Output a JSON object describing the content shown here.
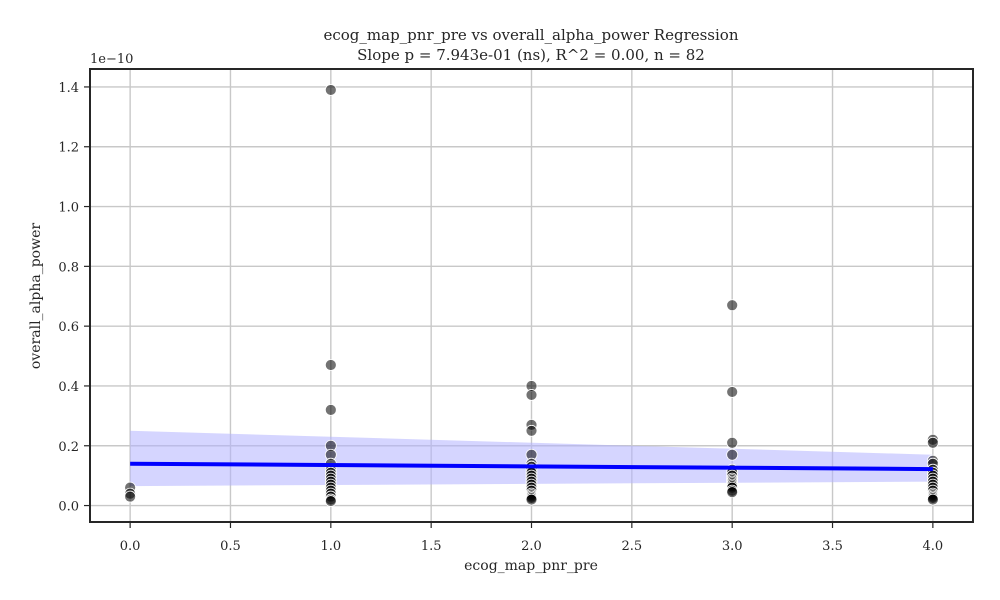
{
  "chart_data": {
    "type": "scatter",
    "title": "ecog_map_pnr_pre vs overall_alpha_power Regression",
    "subtitle": "Slope p = 7.943e-01 (ns), R^2 = 0.00, n = 82",
    "xlabel": "ecog_map_pnr_pre",
    "ylabel": "overall_alpha_power",
    "y_offset_label": "1e−10",
    "xlim": [
      -0.2,
      4.2
    ],
    "ylim": [
      -0.055,
      1.46
    ],
    "x_ticks": [
      0.0,
      0.5,
      1.0,
      1.5,
      2.0,
      2.5,
      3.0,
      3.5,
      4.0
    ],
    "x_tick_labels": [
      "0.0",
      "0.5",
      "1.0",
      "1.5",
      "2.0",
      "2.5",
      "3.0",
      "3.5",
      "4.0"
    ],
    "y_ticks": [
      0.0,
      0.2,
      0.4,
      0.6,
      0.8,
      1.0,
      1.2,
      1.4
    ],
    "y_tick_labels": [
      "0.0",
      "0.2",
      "0.4",
      "0.6",
      "0.8",
      "1.0",
      "1.2",
      "1.4"
    ],
    "grid": true,
    "points": [
      {
        "x": 0,
        "y": 0.06
      },
      {
        "x": 0,
        "y": 0.04
      },
      {
        "x": 0,
        "y": 0.03
      },
      {
        "x": 1,
        "y": 1.39
      },
      {
        "x": 1,
        "y": 0.47
      },
      {
        "x": 1,
        "y": 0.32
      },
      {
        "x": 1,
        "y": 0.2
      },
      {
        "x": 1,
        "y": 0.17
      },
      {
        "x": 1,
        "y": 0.14
      },
      {
        "x": 1,
        "y": 0.12
      },
      {
        "x": 1,
        "y": 0.11
      },
      {
        "x": 1,
        "y": 0.1
      },
      {
        "x": 1,
        "y": 0.09
      },
      {
        "x": 1,
        "y": 0.08
      },
      {
        "x": 1,
        "y": 0.07
      },
      {
        "x": 1,
        "y": 0.06
      },
      {
        "x": 1,
        "y": 0.05
      },
      {
        "x": 1,
        "y": 0.04
      },
      {
        "x": 1,
        "y": 0.03
      },
      {
        "x": 1,
        "y": 0.02
      },
      {
        "x": 1,
        "y": 0.015
      },
      {
        "x": 2,
        "y": 0.4
      },
      {
        "x": 2,
        "y": 0.37
      },
      {
        "x": 2,
        "y": 0.27
      },
      {
        "x": 2,
        "y": 0.25
      },
      {
        "x": 2,
        "y": 0.17
      },
      {
        "x": 2,
        "y": 0.14
      },
      {
        "x": 2,
        "y": 0.13
      },
      {
        "x": 2,
        "y": 0.12
      },
      {
        "x": 2,
        "y": 0.11
      },
      {
        "x": 2,
        "y": 0.1
      },
      {
        "x": 2,
        "y": 0.09
      },
      {
        "x": 2,
        "y": 0.08
      },
      {
        "x": 2,
        "y": 0.07
      },
      {
        "x": 2,
        "y": 0.06
      },
      {
        "x": 2,
        "y": 0.05
      },
      {
        "x": 2,
        "y": 0.04
      },
      {
        "x": 2,
        "y": 0.035
      },
      {
        "x": 2,
        "y": 0.03
      },
      {
        "x": 2,
        "y": 0.025
      },
      {
        "x": 2,
        "y": 0.02
      },
      {
        "x": 3,
        "y": 0.67
      },
      {
        "x": 3,
        "y": 0.38
      },
      {
        "x": 3,
        "y": 0.21
      },
      {
        "x": 3,
        "y": 0.17
      },
      {
        "x": 3,
        "y": 0.12
      },
      {
        "x": 3,
        "y": 0.11
      },
      {
        "x": 3,
        "y": 0.1
      },
      {
        "x": 3,
        "y": 0.09
      },
      {
        "x": 3,
        "y": 0.085
      },
      {
        "x": 3,
        "y": 0.08
      },
      {
        "x": 3,
        "y": 0.075
      },
      {
        "x": 3,
        "y": 0.07
      },
      {
        "x": 3,
        "y": 0.065
      },
      {
        "x": 3,
        "y": 0.06
      },
      {
        "x": 3,
        "y": 0.05
      },
      {
        "x": 3,
        "y": 0.045
      },
      {
        "x": 4,
        "y": 0.22
      },
      {
        "x": 4,
        "y": 0.21
      },
      {
        "x": 4,
        "y": 0.15
      },
      {
        "x": 4,
        "y": 0.14
      },
      {
        "x": 4,
        "y": 0.12
      },
      {
        "x": 4,
        "y": 0.11
      },
      {
        "x": 4,
        "y": 0.1
      },
      {
        "x": 4,
        "y": 0.09
      },
      {
        "x": 4,
        "y": 0.08
      },
      {
        "x": 4,
        "y": 0.07
      },
      {
        "x": 4,
        "y": 0.06
      },
      {
        "x": 4,
        "y": 0.05
      },
      {
        "x": 4,
        "y": 0.04
      },
      {
        "x": 4,
        "y": 0.035
      },
      {
        "x": 4,
        "y": 0.03
      },
      {
        "x": 4,
        "y": 0.025
      },
      {
        "x": 4,
        "y": 0.02
      }
    ],
    "regression": {
      "x": [
        0,
        4
      ],
      "y": [
        0.14,
        0.122
      ],
      "ci_lower": [
        0.065,
        0.08
      ],
      "ci_upper": [
        0.25,
        0.17
      ]
    },
    "colors": {
      "points": "#000000",
      "point_edge": "#ffffff",
      "line": "#0000ff",
      "band": "#b3b3ff",
      "grid": "#c8c8c8",
      "frame": "#262626"
    }
  }
}
